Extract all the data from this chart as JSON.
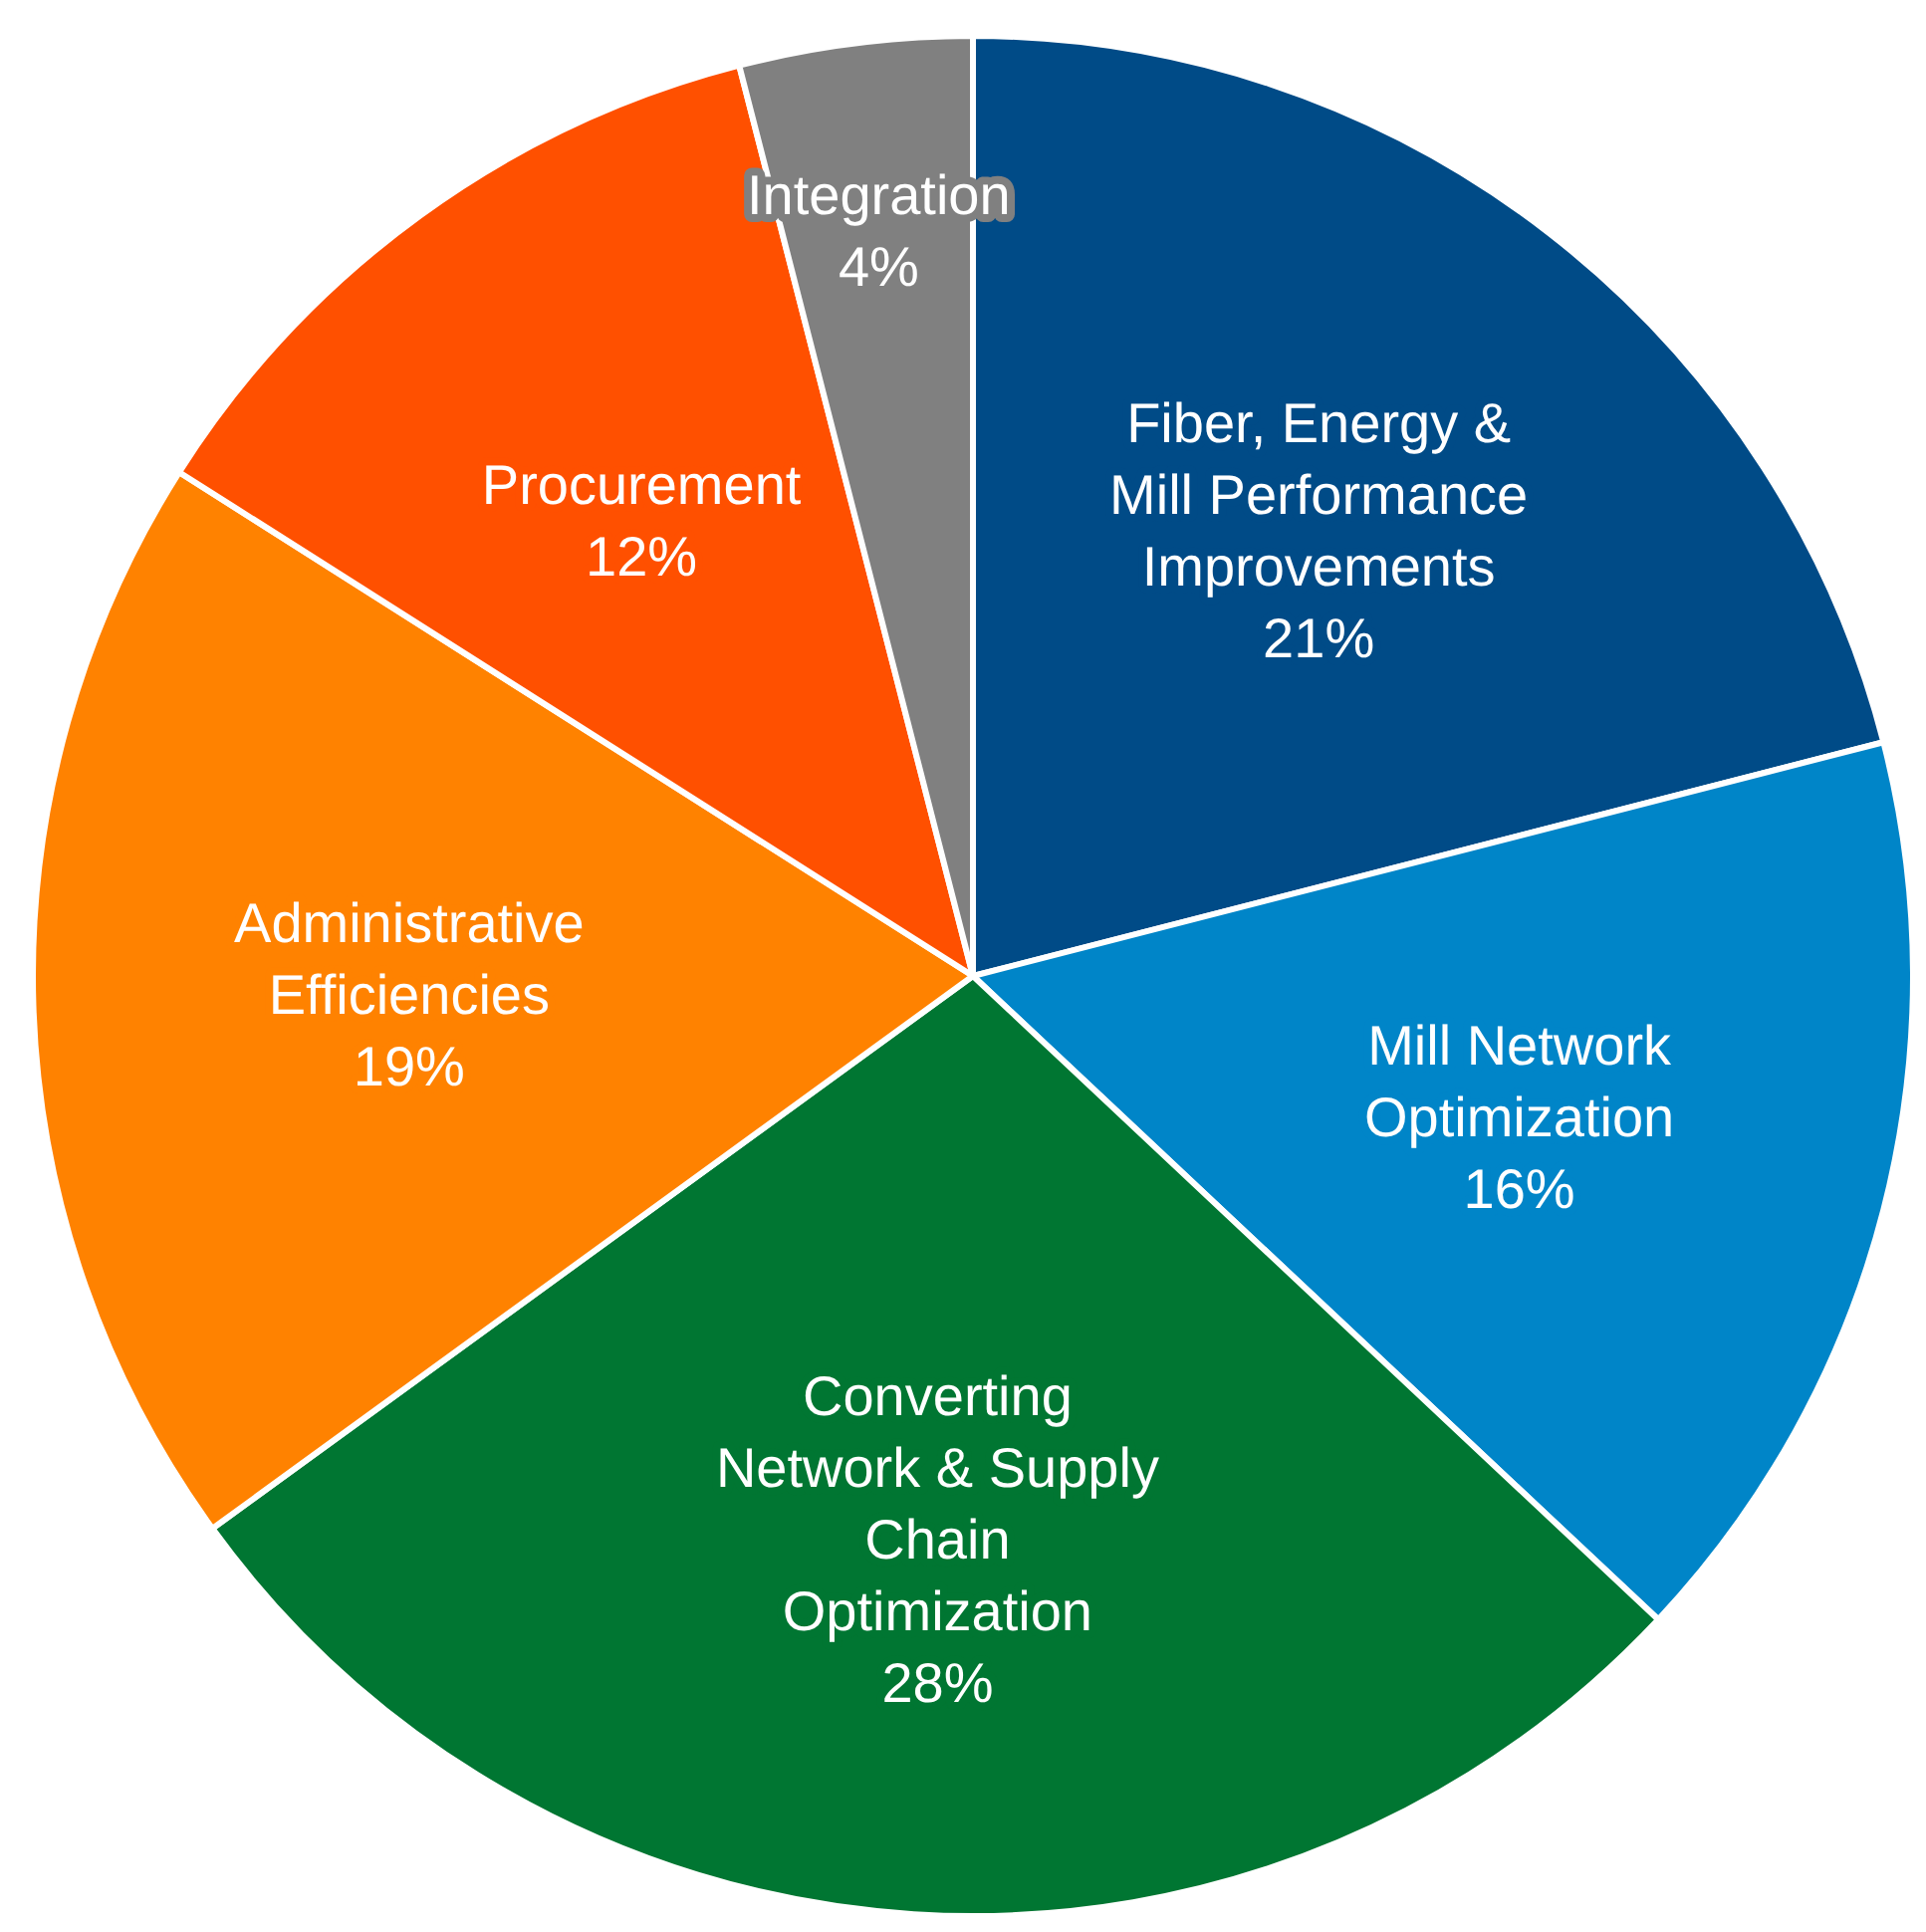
{
  "chart_data": {
    "type": "pie",
    "categories": [
      "Fiber, Energy & Mill Performance Improvements",
      "Mill Network Optimization",
      "Converting Network & Supply Chain Optimization",
      "Administrative Efficiencies",
      "Procurement",
      "Integration"
    ],
    "values": [
      21,
      16,
      28,
      19,
      12,
      4
    ],
    "value_labels": [
      "21%",
      "16%",
      "28%",
      "19%",
      "12%",
      "4%"
    ],
    "colors": [
      "#004b87",
      "#0085c8",
      "#007632",
      "#ff8200",
      "#ff5000",
      "#808080"
    ]
  }
}
